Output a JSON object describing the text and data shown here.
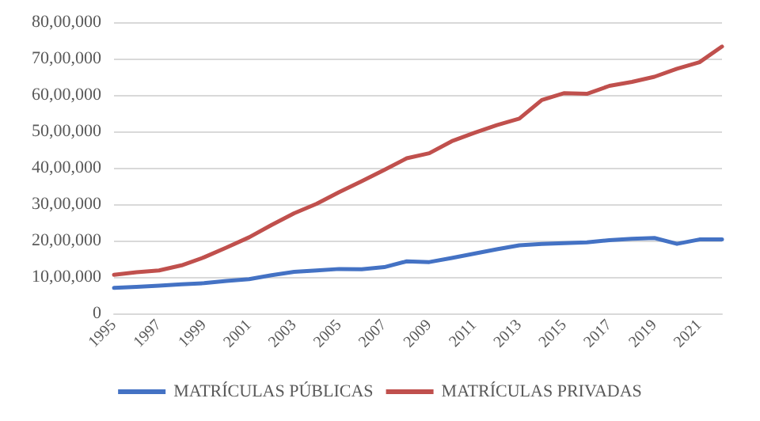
{
  "chart_data": {
    "type": "line",
    "categories": [
      "1995",
      null,
      "1997",
      null,
      "1999",
      null,
      "2001",
      null,
      "2003",
      null,
      "2005",
      null,
      "2007",
      null,
      "2009",
      null,
      "2011",
      null,
      "2013",
      null,
      "2015",
      null,
      "2017",
      null,
      "2019",
      null,
      "2021",
      null
    ],
    "series": [
      {
        "name": "MATRÍCULAS PÚBLICAS",
        "color": "#4472c4",
        "values": [
          700000,
          730000,
          760000,
          800000,
          830000,
          890000,
          940000,
          1050000,
          1140000,
          1180000,
          1220000,
          1210000,
          1270000,
          1430000,
          1410000,
          1520000,
          1640000,
          1760000,
          1870000,
          1910000,
          1930000,
          1950000,
          2010000,
          2050000,
          2070000,
          1910000,
          2030000,
          2030000
        ]
      },
      {
        "name": "MATRÍCULAS PRIVADAS",
        "color": "#c0504d",
        "values": [
          1060000,
          1130000,
          1180000,
          1320000,
          1540000,
          1810000,
          2090000,
          2430000,
          2750000,
          3010000,
          3330000,
          3630000,
          3940000,
          4260000,
          4400000,
          4730000,
          4960000,
          5170000,
          5350000,
          5860000,
          6050000,
          6030000,
          6250000,
          6360000,
          6500000,
          6720000,
          6900000,
          7330000
        ]
      }
    ],
    "ylim": [
      0,
      8000000
    ],
    "yticks": [
      0,
      {
        "value": 1000000,
        "label": "10,00,000"
      },
      {
        "value": 2000000,
        "label": "20,00,000"
      },
      {
        "value": 3000000,
        "label": "30,00,000"
      },
      {
        "value": 4000000,
        "label": "40,00,000"
      },
      {
        "value": 5000000,
        "label": "50,00,000"
      },
      {
        "value": 6000000,
        "label": "60,00,000"
      },
      {
        "value": 7000000,
        "label": "70,00,000"
      },
      {
        "value": 8000000,
        "label": "80,00,000"
      }
    ],
    "grid": "y",
    "legend": "bottom",
    "marker": "none",
    "line_style": "solid"
  }
}
